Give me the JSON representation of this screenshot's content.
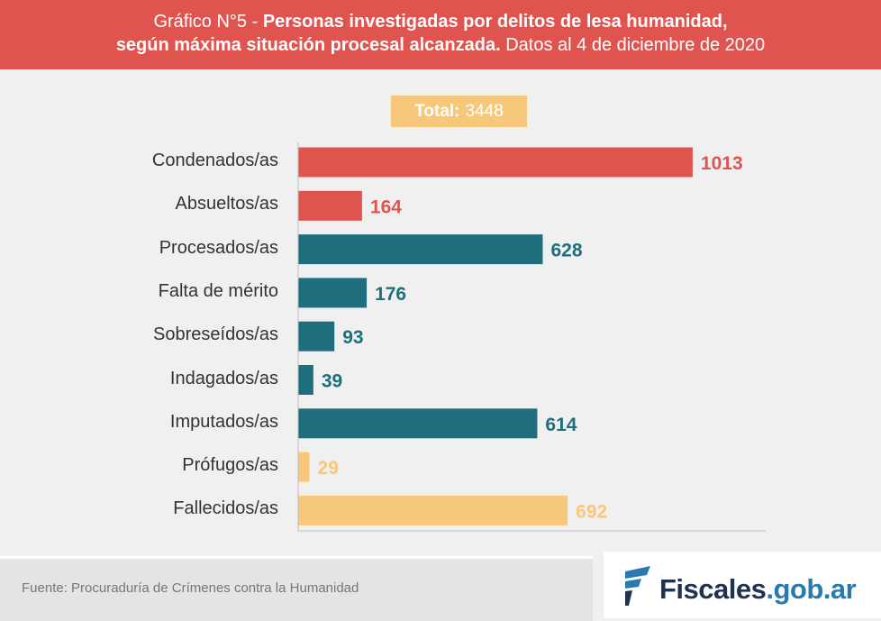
{
  "header": {
    "prefix": "Gráfico N°5 - ",
    "title_bold_1": "Personas investigadas por delitos de lesa humanidad,",
    "title_bold_2": "según máxima situación procesal alcanzada.",
    "subtitle": "Datos al 4 de diciembre de 2020"
  },
  "total": {
    "label": "Total:",
    "value": "3448"
  },
  "chart_data": {
    "type": "bar",
    "orientation": "horizontal",
    "categories": [
      "Condenados/as",
      "Absueltos/as",
      "Procesados/as",
      "Falta de mérito",
      "Sobreseídos/as",
      "Indagados/as",
      "Imputados/as",
      "Prófugos/as",
      "Fallecidos/as"
    ],
    "values": [
      1013,
      164,
      628,
      176,
      93,
      39,
      614,
      29,
      692
    ],
    "colors": [
      "#e05450",
      "#e05450",
      "#1f6e7e",
      "#1f6e7e",
      "#1f6e7e",
      "#1f6e7e",
      "#1f6e7e",
      "#f8c87a",
      "#f8c87a"
    ],
    "xlim": [
      0,
      1200
    ],
    "grid": false,
    "data_labels": true
  },
  "footer": {
    "source": "Fuente: Procuraduría de Crímenes contra la Humanidad",
    "logo_name": "Fiscales",
    "logo_domain": ".gob.ar"
  }
}
